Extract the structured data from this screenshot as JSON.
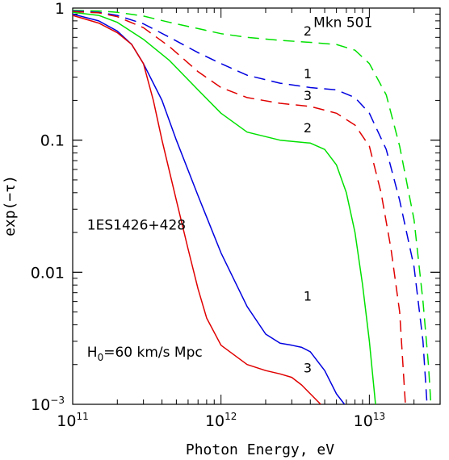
{
  "chart_data": {
    "type": "line",
    "title": "",
    "xlabel": "Photon Energy, eV",
    "ylabel": "exp(−τ)",
    "xscale": "log",
    "yscale": "log",
    "xlim": [
      100000000000.0,
      30000000000000.0
    ],
    "ylim": [
      0.001,
      1
    ],
    "grid": false,
    "x_ticks": [
      {
        "value": 100000000000.0,
        "base": "10",
        "exp": "11"
      },
      {
        "value": 1000000000000.0,
        "base": "10",
        "exp": "12"
      },
      {
        "value": 10000000000000.0,
        "base": "10",
        "exp": "13"
      }
    ],
    "y_ticks": [
      {
        "value": 1,
        "label": "1"
      },
      {
        "value": 0.1,
        "label": "0.1"
      },
      {
        "value": 0.01,
        "label": "0.01"
      },
      {
        "value": 0.001,
        "base": "10",
        "exp": "−3"
      }
    ],
    "annotations": [
      {
        "id": "mkn",
        "text": "Mkn 501",
        "x": 4200000000000.0,
        "y": 0.72
      },
      {
        "id": "es",
        "text": "1ES1426+428",
        "x": 125000000000.0,
        "y": 0.021
      },
      {
        "id": "h0",
        "text_main": "H",
        "text_sub": "0",
        "text_rest": "=60 km/s Mpc",
        "x": 125000000000.0,
        "y": 0.0023
      }
    ],
    "series": [
      {
        "group": "Mkn 501",
        "label": "2",
        "color": "#00e000",
        "dash": true,
        "points": [
          [
            100000000000.0,
            0.96
          ],
          [
            150000000000.0,
            0.95
          ],
          [
            200000000000.0,
            0.93
          ],
          [
            300000000000.0,
            0.87
          ],
          [
            450000000000.0,
            0.78
          ],
          [
            700000000000.0,
            0.7
          ],
          [
            1000000000000.0,
            0.64
          ],
          [
            1500000000000.0,
            0.6
          ],
          [
            2500000000000.0,
            0.57
          ],
          [
            4000000000000.0,
            0.55
          ],
          [
            6000000000000.0,
            0.53
          ],
          [
            8000000000000.0,
            0.48
          ],
          [
            10000000000000.0,
            0.38
          ],
          [
            13000000000000.0,
            0.22
          ],
          [
            16000000000000.0,
            0.09
          ],
          [
            20000000000000.0,
            0.025
          ],
          [
            23000000000000.0,
            0.006
          ],
          [
            25000000000000.0,
            0.002
          ],
          [
            26000000000000.0,
            0.001
          ]
        ],
        "label_at": [
          3300000000000.0,
          0.57
        ]
      },
      {
        "group": "Mkn 501",
        "label": "1",
        "color": "#0000e0",
        "dash": true,
        "points": [
          [
            100000000000.0,
            0.95
          ],
          [
            150000000000.0,
            0.93
          ],
          [
            200000000000.0,
            0.88
          ],
          [
            300000000000.0,
            0.76
          ],
          [
            450000000000.0,
            0.6
          ],
          [
            700000000000.0,
            0.46
          ],
          [
            1000000000000.0,
            0.38
          ],
          [
            1500000000000.0,
            0.31
          ],
          [
            2500000000000.0,
            0.27
          ],
          [
            4000000000000.0,
            0.25
          ],
          [
            6000000000000.0,
            0.24
          ],
          [
            8000000000000.0,
            0.21
          ],
          [
            10000000000000.0,
            0.16
          ],
          [
            13000000000000.0,
            0.085
          ],
          [
            16000000000000.0,
            0.035
          ],
          [
            20000000000000.0,
            0.011
          ],
          [
            23000000000000.0,
            0.003
          ],
          [
            24500000000000.0,
            0.001
          ]
        ],
        "label_at": [
          3300000000000.0,
          0.27
        ]
      },
      {
        "group": "Mkn 501",
        "label": "3",
        "color": "#e00000",
        "dash": true,
        "points": [
          [
            100000000000.0,
            0.94
          ],
          [
            150000000000.0,
            0.92
          ],
          [
            200000000000.0,
            0.86
          ],
          [
            300000000000.0,
            0.71
          ],
          [
            450000000000.0,
            0.51
          ],
          [
            700000000000.0,
            0.33
          ],
          [
            1000000000000.0,
            0.25
          ],
          [
            1500000000000.0,
            0.21
          ],
          [
            2500000000000.0,
            0.19
          ],
          [
            4000000000000.0,
            0.18
          ],
          [
            6000000000000.0,
            0.16
          ],
          [
            8000000000000.0,
            0.13
          ],
          [
            10000000000000.0,
            0.09
          ],
          [
            12000000000000.0,
            0.04
          ],
          [
            14000000000000.0,
            0.015
          ],
          [
            16000000000000.0,
            0.005
          ],
          [
            17500000000000.0,
            0.001
          ]
        ],
        "label_at": [
          3300000000000.0,
          0.185
        ]
      },
      {
        "group": "1ES1426+428",
        "label": "2",
        "color": "#00e000",
        "dash": false,
        "points": [
          [
            100000000000.0,
            0.93
          ],
          [
            150000000000.0,
            0.88
          ],
          [
            200000000000.0,
            0.78
          ],
          [
            300000000000.0,
            0.58
          ],
          [
            450000000000.0,
            0.4
          ],
          [
            700000000000.0,
            0.24
          ],
          [
            1000000000000.0,
            0.16
          ],
          [
            1500000000000.0,
            0.115
          ],
          [
            2500000000000.0,
            0.1
          ],
          [
            4000000000000.0,
            0.095
          ],
          [
            5000000000000.0,
            0.085
          ],
          [
            6000000000000.0,
            0.065
          ],
          [
            7000000000000.0,
            0.04
          ],
          [
            8000000000000.0,
            0.02
          ],
          [
            9000000000000.0,
            0.008
          ],
          [
            10000000000000.0,
            0.003
          ],
          [
            11000000000000.0,
            0.001
          ]
        ],
        "label_at": [
          3300000000000.0,
          0.105
        ]
      },
      {
        "group": "1ES1426+428",
        "label": "1",
        "color": "#0000e0",
        "dash": false,
        "points": [
          [
            100000000000.0,
            0.9
          ],
          [
            150000000000.0,
            0.8
          ],
          [
            200000000000.0,
            0.67
          ],
          [
            250000000000.0,
            0.53
          ],
          [
            300000000000.0,
            0.38
          ],
          [
            400000000000.0,
            0.2
          ],
          [
            500000000000.0,
            0.1
          ],
          [
            700000000000.0,
            0.038
          ],
          [
            1000000000000.0,
            0.014
          ],
          [
            1500000000000.0,
            0.0055
          ],
          [
            2000000000000.0,
            0.0034
          ],
          [
            2500000000000.0,
            0.0029
          ],
          [
            3000000000000.0,
            0.0028
          ],
          [
            3500000000000.0,
            0.0027
          ],
          [
            4000000000000.0,
            0.0025
          ],
          [
            5000000000000.0,
            0.0018
          ],
          [
            6000000000000.0,
            0.0012
          ],
          [
            6800000000000.0,
            0.001
          ]
        ],
        "label_at": [
          3300000000000.0,
          0.0056
        ]
      },
      {
        "group": "1ES1426+428",
        "label": "3",
        "color": "#e00000",
        "dash": false,
        "points": [
          [
            100000000000.0,
            0.88
          ],
          [
            150000000000.0,
            0.77
          ],
          [
            200000000000.0,
            0.65
          ],
          [
            250000000000.0,
            0.53
          ],
          [
            300000000000.0,
            0.38
          ],
          [
            350000000000.0,
            0.2
          ],
          [
            400000000000.0,
            0.1
          ],
          [
            500000000000.0,
            0.035
          ],
          [
            600000000000.0,
            0.015
          ],
          [
            700000000000.0,
            0.0075
          ],
          [
            800000000000.0,
            0.0045
          ],
          [
            1000000000000.0,
            0.0028
          ],
          [
            1500000000000.0,
            0.002
          ],
          [
            2000000000000.0,
            0.0018
          ],
          [
            2500000000000.0,
            0.0017
          ],
          [
            3000000000000.0,
            0.0016
          ],
          [
            3500000000000.0,
            0.0014
          ],
          [
            4000000000000.0,
            0.0012
          ],
          [
            4700000000000.0,
            0.001
          ]
        ],
        "label_at": [
          3300000000000.0,
          0.0016
        ]
      }
    ]
  }
}
